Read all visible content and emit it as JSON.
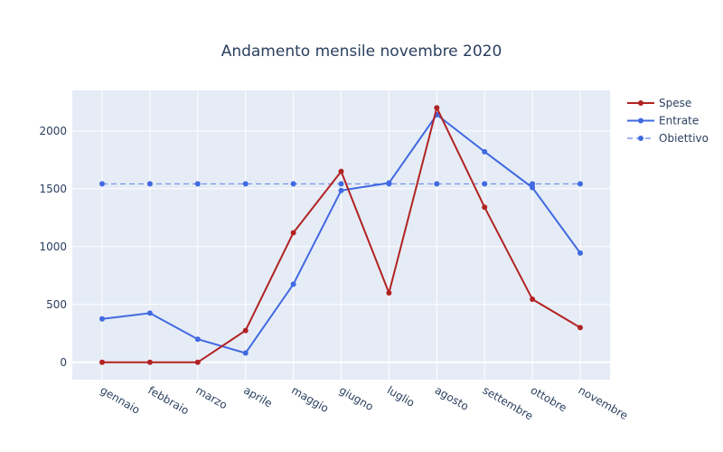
{
  "chart_data": {
    "type": "line",
    "title": "Andamento mensile novembre 2020",
    "xlabel": "",
    "ylabel": "",
    "categories": [
      "gennaio",
      "febbraio",
      "marzo",
      "aprile",
      "maggio",
      "giugno",
      "luglio",
      "agosto",
      "settembre",
      "ottobre",
      "novembre"
    ],
    "ylim": [
      -150,
      2350
    ],
    "yticks": [
      0,
      500,
      1000,
      1500,
      2000
    ],
    "grid": true,
    "legend_position": "top-right",
    "series": [
      {
        "name": "Spese",
        "color": "#b22222",
        "dash": "solid",
        "values": [
          0,
          0,
          0,
          275,
          1120,
          1650,
          600,
          2200,
          1340,
          545,
          300
        ]
      },
      {
        "name": "Entrate",
        "color": "#4169e1",
        "dash": "solid",
        "values": [
          375,
          425,
          200,
          80,
          675,
          1485,
          1550,
          2140,
          1820,
          1510,
          945
        ]
      },
      {
        "name": "Obiettivo",
        "color": "#4169e1",
        "dash": "dashed",
        "values": [
          1542,
          1542,
          1542,
          1542,
          1542,
          1542,
          1542,
          1542,
          1542,
          1542,
          1542
        ]
      }
    ],
    "colors": {
      "plot_background": "#e5ecf6",
      "grid": "#ffffff",
      "text": "#2a3f5f"
    }
  }
}
